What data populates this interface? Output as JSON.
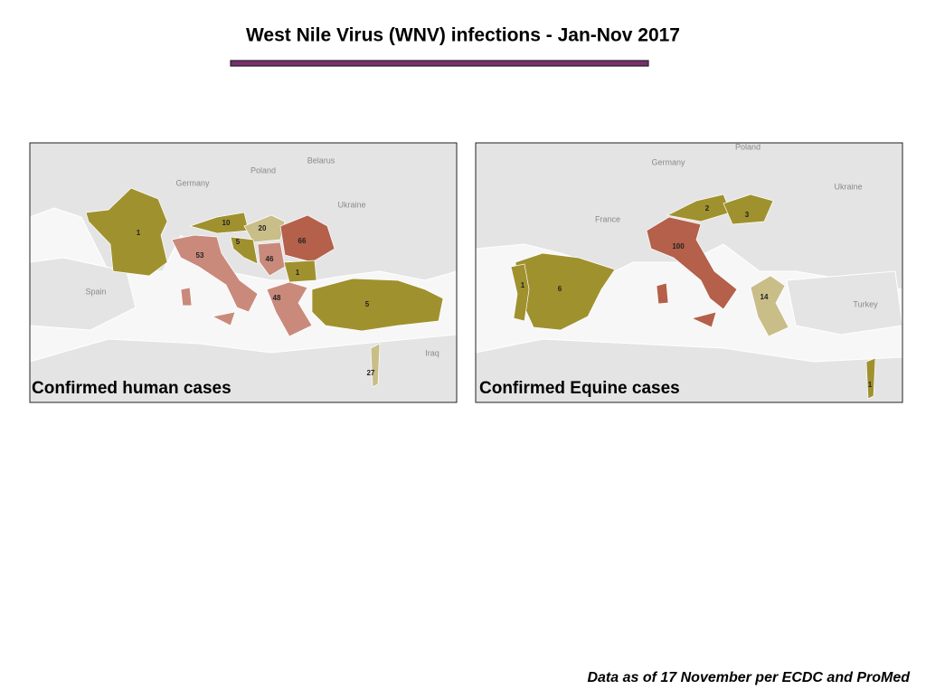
{
  "title": "West Nile Virus (WNV) infections - Jan-Nov 2017",
  "maps": [
    {
      "caption": "Confirmed human cases",
      "place_names": [
        "Poland",
        "Belarus",
        "Germany",
        "Ukraine",
        "Spain",
        "Iraq"
      ],
      "case_labels": [
        1,
        10,
        5,
        20,
        66,
        53,
        46,
        1,
        48,
        5,
        27
      ]
    },
    {
      "caption": "Confirmed Equine cases",
      "place_names": [
        "Poland",
        "Germany",
        "Ukraine",
        "France",
        "Turkey"
      ],
      "case_labels": [
        2,
        3,
        100,
        1,
        6,
        14,
        1
      ]
    }
  ],
  "footnote": "Data as of 17 November per ECDC and ProMed"
}
